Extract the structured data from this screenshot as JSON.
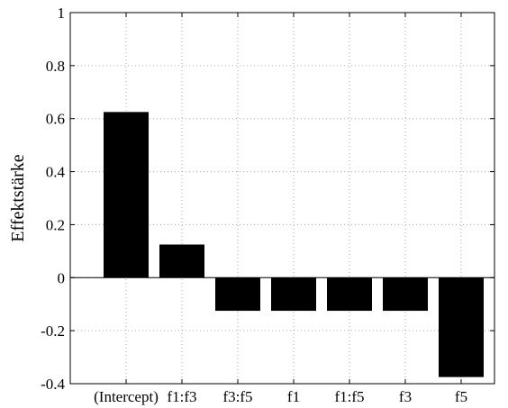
{
  "chart_data": {
    "type": "bar",
    "categories": [
      "(Intercept)",
      "f1:f3",
      "f3:f5",
      "f1",
      "f1:f5",
      "f3",
      "f5"
    ],
    "values": [
      0.625,
      0.125,
      -0.125,
      -0.125,
      -0.125,
      -0.125,
      -0.375
    ],
    "ylabel": "Effektstärke",
    "xlabel": "",
    "title": "",
    "ylim": [
      -0.4,
      1
    ],
    "yticks": [
      -0.4,
      -0.2,
      0,
      0.2,
      0.4,
      0.6,
      0.8,
      1
    ],
    "ytick_labels": [
      "-0.4",
      "-0.2",
      "0",
      "0.2",
      "0.4",
      "0.6",
      "0.8",
      "1"
    ],
    "grid": true,
    "bar_color": "#000000"
  }
}
